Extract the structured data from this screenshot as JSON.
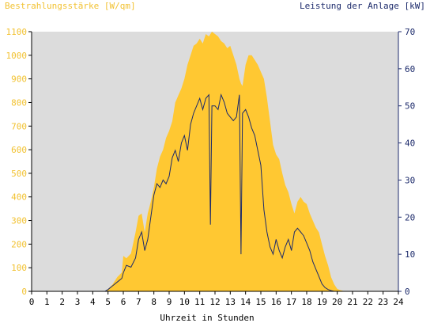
{
  "chart_data": {
    "type": "area",
    "title_left": "Bestrahlungsstärke [W/qm]",
    "title_right": "Leistung der Anlage [kW]",
    "xlabel": "Uhrzeit in Stunden",
    "xlim": [
      0,
      24
    ],
    "xticks": [
      "0",
      "1",
      "2",
      "3",
      "4",
      "5",
      "6",
      "7",
      "8",
      "9",
      "10",
      "11",
      "12",
      "13",
      "14",
      "15",
      "16",
      "17",
      "18",
      "19",
      "20",
      "21",
      "22",
      "23",
      "24"
    ],
    "ylim_left": [
      0,
      1100
    ],
    "yticks_left": [
      "0",
      "100",
      "200",
      "300",
      "400",
      "500",
      "600",
      "700",
      "800",
      "900",
      "1000",
      "1100"
    ],
    "ylim_right": [
      0,
      70
    ],
    "yticks_right": [
      "0",
      "10",
      "20",
      "30",
      "40",
      "50",
      "60",
      "70"
    ],
    "grid": false,
    "colors": {
      "background": "#dcdcdc",
      "irradiance_fill": "#ffc832",
      "power_line": "#1c2a6b",
      "left_axis_text": "#f2c232",
      "right_axis_text": "#1c2a6b"
    },
    "series": [
      {
        "axis": "left",
        "style": "area",
        "x": [
          0,
          4.8,
          5.0,
          5.3,
          5.6,
          5.9,
          6.0,
          6.2,
          6.5,
          6.8,
          7.0,
          7.2,
          7.4,
          7.6,
          7.8,
          8.0,
          8.2,
          8.4,
          8.6,
          8.8,
          9.0,
          9.2,
          9.4,
          9.6,
          9.8,
          10.0,
          10.2,
          10.4,
          10.6,
          10.8,
          11.0,
          11.2,
          11.4,
          11.6,
          11.8,
          12.0,
          12.2,
          12.4,
          12.6,
          12.8,
          13.0,
          13.2,
          13.4,
          13.6,
          13.7,
          13.8,
          14.0,
          14.2,
          14.4,
          14.6,
          14.8,
          15.0,
          15.2,
          15.4,
          15.6,
          15.8,
          16.0,
          16.2,
          16.4,
          16.6,
          16.8,
          17.0,
          17.2,
          17.4,
          17.6,
          17.8,
          18.0,
          18.2,
          18.4,
          18.6,
          18.8,
          19.0,
          19.2,
          19.4,
          19.6,
          19.8,
          20.0,
          20.2,
          20.5,
          24
        ],
        "values": [
          0,
          0,
          10,
          30,
          60,
          80,
          150,
          140,
          160,
          250,
          320,
          330,
          250,
          330,
          380,
          440,
          520,
          570,
          600,
          650,
          680,
          720,
          800,
          830,
          860,
          900,
          960,
          1000,
          1040,
          1050,
          1070,
          1050,
          1090,
          1080,
          1100,
          1090,
          1080,
          1060,
          1050,
          1030,
          1040,
          1000,
          960,
          900,
          880,
          870,
          960,
          1000,
          1000,
          980,
          960,
          930,
          900,
          820,
          720,
          620,
          580,
          560,
          500,
          450,
          420,
          370,
          330,
          380,
          400,
          380,
          370,
          330,
          300,
          270,
          250,
          200,
          150,
          110,
          60,
          30,
          10,
          5,
          0,
          0
        ]
      },
      {
        "axis": "right",
        "style": "line",
        "x": [
          0,
          4.8,
          5.0,
          5.3,
          5.6,
          5.9,
          6.0,
          6.2,
          6.5,
          6.8,
          7.0,
          7.2,
          7.4,
          7.6,
          7.8,
          8.0,
          8.2,
          8.4,
          8.6,
          8.8,
          9.0,
          9.2,
          9.4,
          9.6,
          9.8,
          10.0,
          10.2,
          10.4,
          10.6,
          10.8,
          11.0,
          11.2,
          11.4,
          11.6,
          11.7,
          11.8,
          12.0,
          12.2,
          12.4,
          12.6,
          12.8,
          13.0,
          13.2,
          13.4,
          13.6,
          13.7,
          13.8,
          14.0,
          14.2,
          14.4,
          14.6,
          14.8,
          15.0,
          15.2,
          15.4,
          15.6,
          15.8,
          16.0,
          16.2,
          16.4,
          16.6,
          16.8,
          17.0,
          17.2,
          17.4,
          17.6,
          17.8,
          18.0,
          18.2,
          18.4,
          18.6,
          18.8,
          19.0,
          19.2,
          19.4,
          19.6,
          19.8,
          20.0,
          20.2,
          20.5,
          24
        ],
        "values": [
          0,
          0,
          0.5,
          1.5,
          2.5,
          3.5,
          5,
          7,
          6.5,
          9,
          14,
          16,
          11,
          14,
          20,
          26,
          29,
          28,
          30,
          29,
          31,
          36,
          38,
          35,
          40,
          42,
          38,
          45,
          48,
          50,
          52,
          49,
          52,
          53,
          18,
          50,
          50,
          49,
          53,
          51,
          48,
          47,
          46,
          47,
          53,
          10,
          48,
          49,
          47,
          44,
          42,
          38,
          34,
          22,
          16,
          12,
          10,
          14,
          11,
          9,
          12,
          14,
          11,
          16,
          17,
          16,
          15,
          13,
          11,
          8,
          6,
          4,
          2,
          1,
          0.5,
          0.2,
          0,
          0,
          0,
          0,
          0
        ]
      }
    ]
  }
}
